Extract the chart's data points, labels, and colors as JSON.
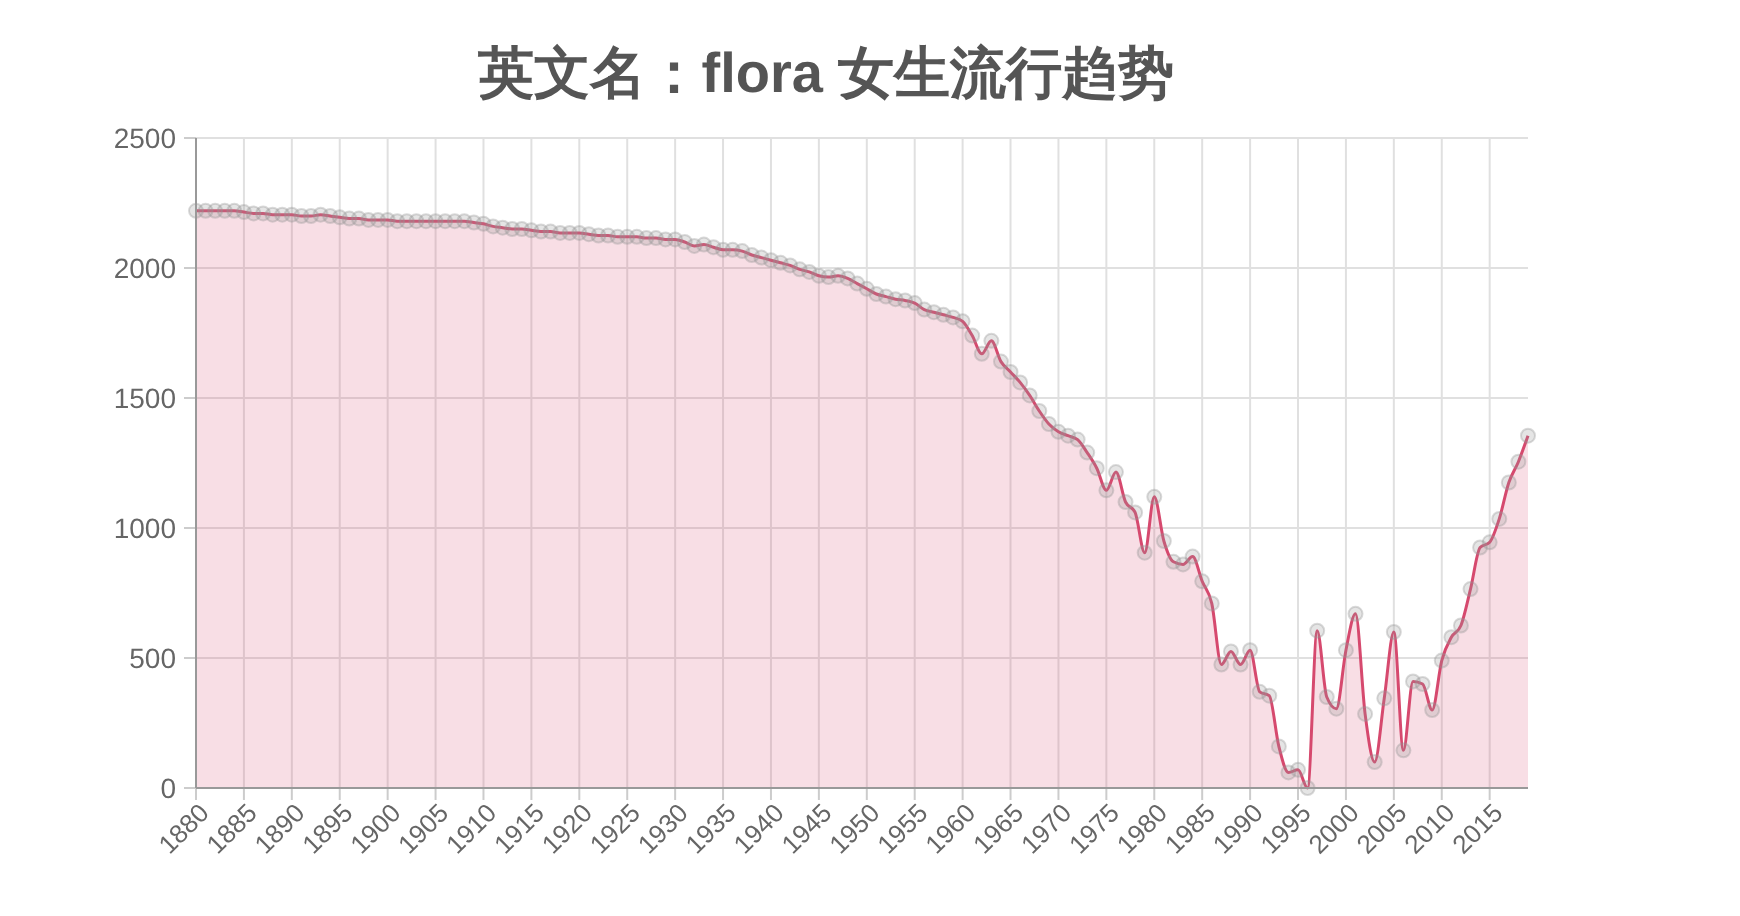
{
  "chart_data": {
    "type": "area",
    "title": "英文名：flora 女生流行趋势",
    "x": [
      1880,
      1881,
      1882,
      1883,
      1884,
      1885,
      1886,
      1887,
      1888,
      1889,
      1890,
      1891,
      1892,
      1893,
      1894,
      1895,
      1896,
      1897,
      1898,
      1899,
      1900,
      1901,
      1902,
      1903,
      1904,
      1905,
      1906,
      1907,
      1908,
      1909,
      1910,
      1911,
      1912,
      1913,
      1914,
      1915,
      1916,
      1917,
      1918,
      1919,
      1920,
      1921,
      1922,
      1923,
      1924,
      1925,
      1926,
      1927,
      1928,
      1929,
      1930,
      1931,
      1932,
      1933,
      1934,
      1935,
      1936,
      1937,
      1938,
      1939,
      1940,
      1941,
      1942,
      1943,
      1944,
      1945,
      1946,
      1947,
      1948,
      1949,
      1950,
      1951,
      1952,
      1953,
      1954,
      1955,
      1956,
      1957,
      1958,
      1959,
      1960,
      1961,
      1962,
      1963,
      1964,
      1965,
      1966,
      1967,
      1968,
      1969,
      1970,
      1971,
      1972,
      1973,
      1974,
      1975,
      1976,
      1977,
      1978,
      1979,
      1980,
      1981,
      1982,
      1983,
      1984,
      1985,
      1986,
      1987,
      1988,
      1989,
      1990,
      1991,
      1992,
      1993,
      1994,
      1995,
      1996,
      1997,
      1998,
      1999,
      2000,
      2001,
      2002,
      2003,
      2004,
      2005,
      2006,
      2007,
      2008,
      2009,
      2010,
      2011,
      2012,
      2013,
      2014,
      2015,
      2016,
      2017,
      2018,
      2019
    ],
    "series": [
      {
        "color": "#d6496e",
        "values": [
          2220,
          2220,
          2220,
          2220,
          2220,
          2215,
          2210,
          2210,
          2205,
          2205,
          2205,
          2200,
          2200,
          2205,
          2200,
          2195,
          2190,
          2190,
          2185,
          2185,
          2185,
          2180,
          2180,
          2180,
          2180,
          2180,
          2180,
          2180,
          2180,
          2175,
          2170,
          2160,
          2155,
          2150,
          2150,
          2145,
          2140,
          2140,
          2135,
          2135,
          2135,
          2130,
          2125,
          2125,
          2120,
          2120,
          2120,
          2115,
          2115,
          2110,
          2110,
          2100,
          2085,
          2090,
          2080,
          2070,
          2070,
          2065,
          2050,
          2040,
          2030,
          2020,
          2010,
          1995,
          1985,
          1970,
          1965,
          1970,
          1960,
          1940,
          1920,
          1900,
          1890,
          1880,
          1875,
          1865,
          1840,
          1830,
          1820,
          1810,
          1795,
          1740,
          1670,
          1720,
          1640,
          1600,
          1560,
          1510,
          1450,
          1400,
          1370,
          1355,
          1340,
          1290,
          1230,
          1145,
          1215,
          1100,
          1060,
          905,
          1120,
          950,
          870,
          860,
          890,
          795,
          710,
          475,
          525,
          475,
          530,
          370,
          355,
          160,
          60,
          70,
          0,
          605,
          350,
          305,
          530,
          670,
          285,
          100,
          345,
          600,
          145,
          410,
          400,
          300,
          490,
          580,
          625,
          765,
          925,
          945,
          1035,
          1175,
          1255,
          1355
        ]
      }
    ],
    "xlim": [
      1880,
      2019
    ],
    "xticks": [
      1880,
      1885,
      1890,
      1895,
      1900,
      1905,
      1910,
      1915,
      1920,
      1925,
      1930,
      1935,
      1940,
      1945,
      1950,
      1955,
      1960,
      1965,
      1970,
      1975,
      1980,
      1985,
      1990,
      1995,
      2000,
      2005,
      2010,
      2015
    ],
    "ylim": [
      0,
      2500
    ],
    "yticks": [
      0,
      500,
      1000,
      1500,
      2000,
      2500
    ],
    "grid": true,
    "marker": "circle",
    "line_style": "solid"
  }
}
